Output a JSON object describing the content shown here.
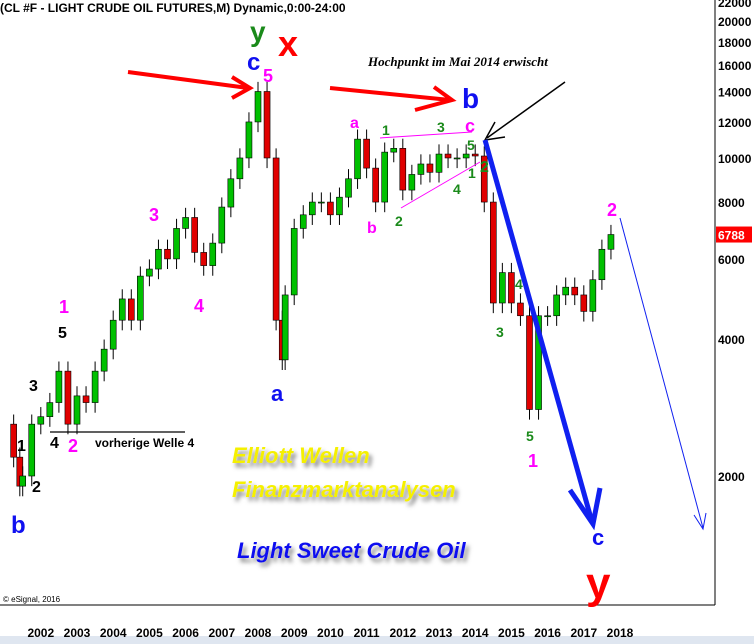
{
  "chart_data": {
    "type": "candlestick",
    "title": "(CL #F - LIGHT CRUDE OIL FUTURES,M) Dynamic,0:00-24:00",
    "y_scale": "log",
    "ylim": [
      1500,
      22500
    ],
    "y_ticks": [
      2000,
      4000,
      6000,
      8000,
      10000,
      12000,
      14000,
      16000,
      18000,
      20000,
      22000
    ],
    "x_ticks": [
      "2002",
      "2003",
      "2004",
      "2005",
      "2006",
      "2007",
      "2008",
      "2009",
      "2010",
      "2011",
      "2012",
      "2013",
      "2014",
      "2015",
      "2016",
      "2017",
      "2018"
    ],
    "last_price": 6788,
    "grid": false,
    "closes": [
      [
        2001.5,
        2600
      ],
      [
        2001.75,
        2200
      ],
      [
        2001.92,
        1900
      ],
      [
        2002.0,
        2000
      ],
      [
        2002.25,
        2600
      ],
      [
        2002.5,
        2700
      ],
      [
        2002.75,
        2900
      ],
      [
        2003.0,
        3400
      ],
      [
        2003.25,
        2600
      ],
      [
        2003.5,
        3000
      ],
      [
        2003.75,
        2900
      ],
      [
        2004.0,
        3400
      ],
      [
        2004.25,
        3800
      ],
      [
        2004.5,
        4400
      ],
      [
        2004.75,
        4900
      ],
      [
        2005.0,
        4400
      ],
      [
        2005.25,
        5500
      ],
      [
        2005.5,
        5700
      ],
      [
        2005.75,
        6300
      ],
      [
        2006.0,
        6000
      ],
      [
        2006.25,
        7000
      ],
      [
        2006.5,
        7400
      ],
      [
        2006.75,
        6200
      ],
      [
        2007.0,
        5800
      ],
      [
        2007.25,
        6500
      ],
      [
        2007.5,
        7800
      ],
      [
        2007.75,
        9000
      ],
      [
        2008.0,
        10000
      ],
      [
        2008.25,
        12000
      ],
      [
        2008.5,
        14000
      ],
      [
        2008.75,
        10000
      ],
      [
        2009.0,
        4400
      ],
      [
        2009.17,
        3600
      ],
      [
        2009.25,
        5000
      ],
      [
        2009.5,
        7000
      ],
      [
        2009.75,
        7500
      ],
      [
        2010.0,
        8000
      ],
      [
        2010.25,
        8000
      ],
      [
        2010.5,
        7500
      ],
      [
        2010.75,
        8200
      ],
      [
        2011.0,
        9000
      ],
      [
        2011.25,
        11000
      ],
      [
        2011.5,
        9500
      ],
      [
        2011.75,
        8000
      ],
      [
        2012.0,
        10300
      ],
      [
        2012.25,
        10500
      ],
      [
        2012.5,
        8500
      ],
      [
        2012.75,
        9200
      ],
      [
        2013.0,
        9700
      ],
      [
        2013.25,
        9300
      ],
      [
        2013.5,
        10200
      ],
      [
        2013.75,
        10000
      ],
      [
        2014.0,
        10000
      ],
      [
        2014.25,
        10200
      ],
      [
        2014.5,
        10100
      ],
      [
        2014.75,
        8000
      ],
      [
        2015.0,
        4800
      ],
      [
        2015.25,
        5600
      ],
      [
        2015.5,
        4800
      ],
      [
        2015.75,
        4500
      ],
      [
        2016.0,
        2800
      ],
      [
        2016.25,
        4500
      ],
      [
        2016.5,
        4500
      ],
      [
        2016.75,
        5000
      ],
      [
        2017.0,
        5200
      ],
      [
        2017.25,
        5000
      ],
      [
        2017.5,
        4600
      ],
      [
        2017.75,
        5400
      ],
      [
        2018.0,
        6300
      ],
      [
        2018.25,
        6788
      ]
    ],
    "colors": {
      "up": "#00c000",
      "down": "#e00000",
      "last_price_bg": "#ff0000"
    }
  },
  "annotations": {
    "wave_y_top": "y",
    "wave_x": "x",
    "wave_c_top": "c",
    "wave_5_top": "5",
    "wave_b_2014": "b",
    "wave_c_2014": "c",
    "wave_a_2011": "a",
    "tri_1": "1",
    "tri_3": "3",
    "tri_5": "5",
    "tri_2_right": "2",
    "tri_1_right": "1",
    "tri_4": "4",
    "wave_b_2011": "b",
    "tri_2": "2",
    "hochpunkt": "Hochpunkt im Mai 2014 erwischt",
    "m3": "3",
    "m4": "4",
    "m1": "1",
    "k5": "5",
    "k3": "3",
    "k1": "1",
    "k2": "2",
    "k4": "4",
    "m2": "2",
    "wave_b_2001": "b",
    "vorherige": "vorherige Welle 4",
    "wave_a_2009": "a",
    "g4": "4",
    "g3": "3",
    "g5": "5",
    "m1_2016": "1",
    "m2_2018": "2",
    "wave_c_target": "c",
    "wave_y_target": "y",
    "brand_line1": "Elliott Wellen",
    "brand_line2": "Finanzmarktanalysen",
    "brand_line3": "Light Sweet Crude Oil",
    "copyright": "© eSignal, 2016"
  }
}
